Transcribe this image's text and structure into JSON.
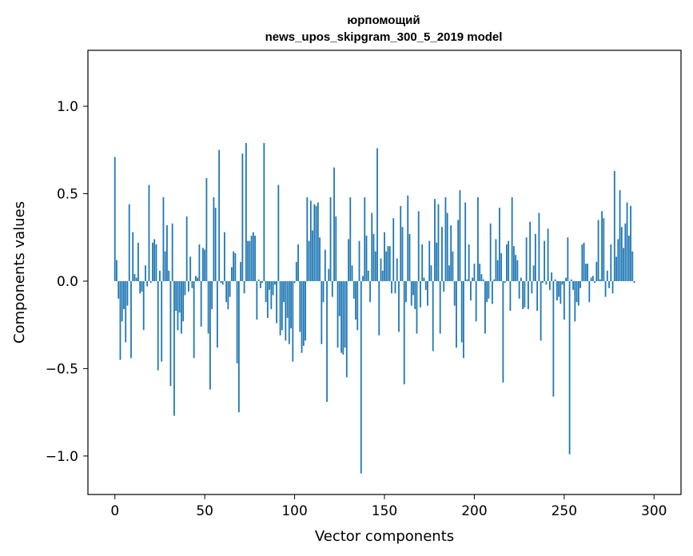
{
  "chart_data": {
    "type": "bar",
    "title": "юрпомощий",
    "subtitle": "news_upos_skipgram_300_5_2019 model",
    "xlabel": "Vector components",
    "ylabel": "Components values",
    "xlim": [
      -15,
      315
    ],
    "ylim": [
      -1.22,
      1.32
    ],
    "xticks": [
      0,
      50,
      100,
      150,
      200,
      250,
      300
    ],
    "yticks": [
      -1.0,
      -0.5,
      0.0,
      0.5,
      1.0
    ],
    "xtick_labels": [
      "0",
      "50",
      "100",
      "150",
      "200",
      "250",
      "300"
    ],
    "ytick_labels": [
      "−1.0",
      "−0.5",
      "0.0",
      "0.5",
      "1.0"
    ],
    "color": "#1f77b4",
    "x_start": 0,
    "values": [
      0.71,
      0.12,
      -0.1,
      -0.45,
      -0.23,
      -0.16,
      -0.35,
      -0.14,
      0.44,
      -0.44,
      0.28,
      0.04,
      0.02,
      0.22,
      -0.07,
      -0.06,
      -0.28,
      0.09,
      -0.03,
      0.55,
      -0.01,
      0.22,
      0.24,
      0.21,
      -0.51,
      0.06,
      -0.46,
      0.48,
      0.17,
      0.32,
      0.06,
      -0.6,
      0.33,
      -0.77,
      -0.17,
      -0.28,
      -0.18,
      -0.3,
      -0.23,
      -0.08,
      0.37,
      -0.06,
      0.14,
      -0.04,
      -0.44,
      0.03,
      0.02,
      0.21,
      -0.26,
      0.19,
      0.18,
      0.59,
      -0.3,
      -0.62,
      -0.16,
      0.48,
      0.42,
      -0.38,
      0.75,
      -0.01,
      -0.02,
      0.28,
      -0.12,
      -0.16,
      -0.09,
      0.08,
      0.17,
      0.16,
      -0.47,
      -0.75,
      0.11,
      0.73,
      -0.07,
      0.79,
      0.23,
      0.23,
      0.26,
      0.28,
      0.26,
      -0.22,
      0.01,
      -0.04,
      -0.01,
      0.79,
      -0.12,
      -0.21,
      -0.05,
      -0.16,
      -0.08,
      -0.02,
      -0.24,
      0.55,
      -0.31,
      -0.28,
      -0.12,
      -0.34,
      -0.21,
      -0.36,
      -0.27,
      -0.46,
      -0.01,
      0.11,
      0.21,
      -0.29,
      -0.41,
      -0.37,
      -0.34,
      0.48,
      0.23,
      0.46,
      0.29,
      0.44,
      0.43,
      0.45,
      0.25,
      -0.36,
      -0.12,
      0.18,
      -0.69,
      0.07,
      0.48,
      -0.09,
      0.65,
      0.37,
      -0.38,
      -0.2,
      -0.41,
      -0.42,
      -0.38,
      -0.55,
      0.24,
      0.48,
      0.09,
      -0.1,
      -0.22,
      -0.28,
      0.23,
      -1.1,
      0.03,
      0.48,
      0.26,
      0.06,
      -0.12,
      0.39,
      0.27,
      0.17,
      0.76,
      -0.31,
      0.13,
      0.06,
      0.28,
      0.17,
      0.2,
      0.2,
      -0.07,
      0.36,
      -0.07,
      0.13,
      -0.29,
      0.43,
      0.31,
      -0.59,
      -0.12,
      0.49,
      0.27,
      -0.14,
      -0.08,
      -0.16,
      -0.3,
      0.4,
      -0.15,
      0.21,
      0.02,
      -0.05,
      -0.14,
      0.23,
      0.09,
      -0.4,
      0.47,
      0.22,
      0.44,
      -0.3,
      0.31,
      -0.06,
      0.48,
      0.39,
      0.09,
      0.32,
      0.17,
      -0.14,
      -0.38,
      0.35,
      0.52,
      -0.35,
      -0.44,
      0.45,
      0.01,
      0.21,
      -0.11,
      0.02,
      0.1,
      -0.23,
      0.48,
      0.1,
      0.04,
      0.01,
      -0.3,
      -0.12,
      -0.1,
      0.33,
      -0.13,
      0.01,
      0.24,
      0.12,
      0.42,
      0.16,
      -0.58,
      -0.01,
      0.21,
      0.23,
      -0.17,
      0.48,
      0.2,
      0.15,
      0.12,
      -0.1,
      0.02,
      -0.16,
      -0.15,
      0.25,
      -0.16,
      0.34,
      -0.07,
      0.09,
      0.27,
      -0.17,
      0.39,
      -0.34,
      -0.01,
      0.23,
      -0.02,
      0.3,
      -0.05,
      0.05,
      -0.66,
      0.01,
      -0.11,
      -0.09,
      -0.13,
      -0.02,
      -0.22,
      0.02,
      0.25,
      -0.99,
      0.01,
      -0.05,
      -0.23,
      -0.12,
      -0.14,
      -0.04,
      0.21,
      0.22,
      0.1,
      0.1,
      -0.12,
      0.02,
      0.03,
      -0.01,
      0.11,
      0.35,
      0.01,
      0.4,
      0.36,
      -0.09,
      0.06,
      -0.04,
      0.21,
      -0.07,
      0.63,
      0.14,
      0.24,
      0.52,
      0.31,
      0.19,
      0.33,
      0.45,
      0.26,
      0.43,
      0.17,
      -0.01
    ]
  }
}
